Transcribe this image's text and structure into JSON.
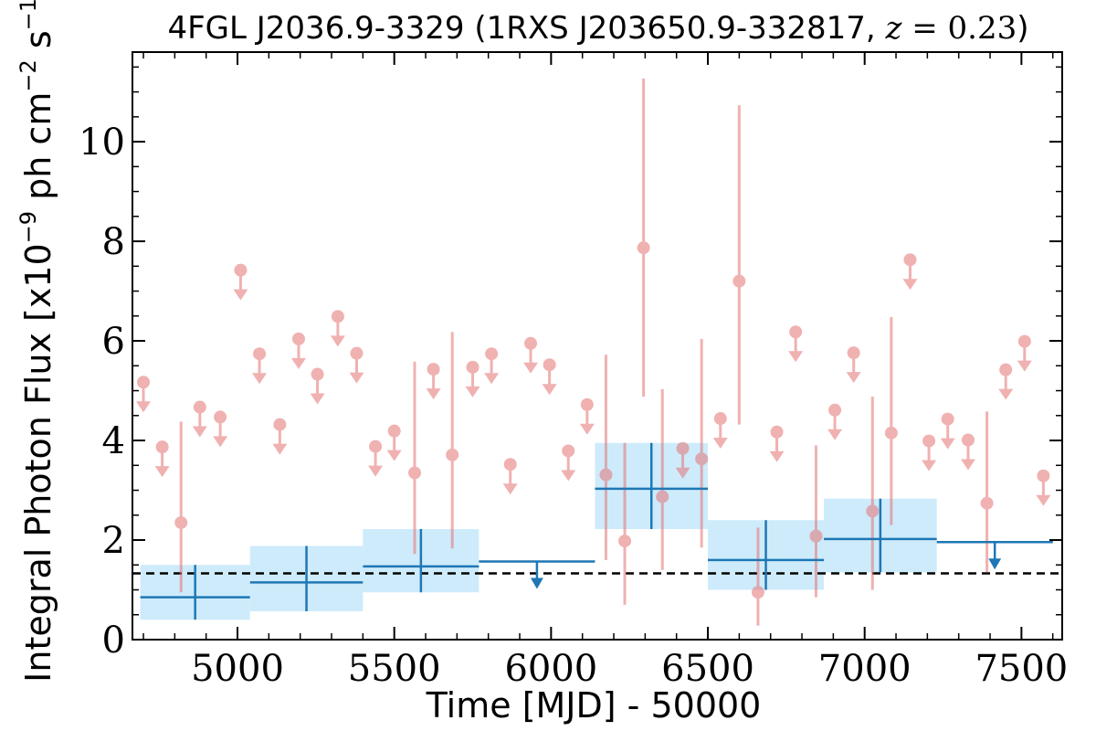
{
  "chart_data": {
    "type": "scatter",
    "title": "4FGL J2036.9-3329 (1RXS J203650.9-332817, z = 0.23)",
    "title_parts": {
      "prefix": "4FGL J2036.9-3329 (1RXS J203650.9-332817, ",
      "z_var": "z",
      "z_eq": " = 0.23",
      "suffix": ")"
    },
    "xlabel": "Time [MJD] - 50000",
    "ylabel": "Integral Photon Flux [x10⁻⁹ ph cm⁻² s⁻¹]",
    "ylabel_parts": {
      "a": "Integral Photon Flux [x10",
      "sup1": "−9",
      "b": " ph cm",
      "sup2": "−2",
      "c": " s",
      "sup3": "−1",
      "d": "]"
    },
    "xlim": [
      4665,
      7630
    ],
    "ylim": [
      0,
      11.8
    ],
    "x_ticks": [
      5000,
      5500,
      6000,
      6500,
      7000,
      7500
    ],
    "x_tick_labels": [
      "5000",
      "5500",
      "6000",
      "6500",
      "7000",
      "7500"
    ],
    "y_ticks": [
      0,
      2,
      4,
      6,
      8,
      10
    ],
    "y_tick_labels": [
      "0",
      "2",
      "4",
      "6",
      "8",
      "10"
    ],
    "grid": false,
    "reference_line": {
      "y": 1.33,
      "style": "dashed",
      "color": "#000000"
    },
    "colors": {
      "short_bins": "#e57373",
      "long_bins": "#1f77b4",
      "long_band": "#cdebfb"
    },
    "long_bins": [
      {
        "x0": 4690,
        "x1": 5040,
        "y": 0.85,
        "ylo": 0.4,
        "yhi": 1.5,
        "upper_limit": false
      },
      {
        "x0": 5040,
        "x1": 5400,
        "y": 1.15,
        "ylo": 0.57,
        "yhi": 1.88,
        "upper_limit": false
      },
      {
        "x0": 5400,
        "x1": 5770,
        "y": 1.47,
        "ylo": 0.95,
        "yhi": 2.22,
        "upper_limit": false
      },
      {
        "x0": 5770,
        "x1": 6140,
        "y": 1.57,
        "upper_limit": true
      },
      {
        "x0": 6140,
        "x1": 6500,
        "y": 3.03,
        "ylo": 2.22,
        "yhi": 3.95,
        "upper_limit": false
      },
      {
        "x0": 6500,
        "x1": 6870,
        "y": 1.6,
        "ylo": 1.0,
        "yhi": 2.4,
        "upper_limit": false
      },
      {
        "x0": 6870,
        "x1": 7230,
        "y": 2.02,
        "ylo": 1.35,
        "yhi": 2.83,
        "upper_limit": false
      },
      {
        "x0": 7230,
        "x1": 7600,
        "y": 1.96,
        "upper_limit": true
      }
    ],
    "short_bins": [
      {
        "x": 4700,
        "y": 5.17,
        "upper_limit": true
      },
      {
        "x": 4760,
        "y": 3.87,
        "upper_limit": true
      },
      {
        "x": 4820,
        "y": 2.35,
        "ylo": 0.95,
        "yhi": 4.38,
        "upper_limit": false
      },
      {
        "x": 4880,
        "y": 4.67,
        "upper_limit": true
      },
      {
        "x": 4945,
        "y": 4.47,
        "upper_limit": true
      },
      {
        "x": 5010,
        "y": 7.42,
        "upper_limit": true
      },
      {
        "x": 5070,
        "y": 5.74,
        "upper_limit": true
      },
      {
        "x": 5135,
        "y": 4.32,
        "upper_limit": true
      },
      {
        "x": 5195,
        "y": 6.04,
        "upper_limit": true
      },
      {
        "x": 5255,
        "y": 5.33,
        "upper_limit": true
      },
      {
        "x": 5320,
        "y": 6.49,
        "upper_limit": true
      },
      {
        "x": 5380,
        "y": 5.75,
        "upper_limit": true
      },
      {
        "x": 5440,
        "y": 3.88,
        "upper_limit": true
      },
      {
        "x": 5500,
        "y": 4.19,
        "upper_limit": true
      },
      {
        "x": 5565,
        "y": 3.35,
        "ylo": 1.72,
        "yhi": 5.58,
        "upper_limit": false
      },
      {
        "x": 5625,
        "y": 5.43,
        "upper_limit": true
      },
      {
        "x": 5685,
        "y": 3.71,
        "ylo": 1.83,
        "yhi": 6.18,
        "upper_limit": false
      },
      {
        "x": 5750,
        "y": 5.47,
        "upper_limit": true
      },
      {
        "x": 5810,
        "y": 5.74,
        "upper_limit": true
      },
      {
        "x": 5870,
        "y": 3.52,
        "upper_limit": true
      },
      {
        "x": 5935,
        "y": 5.95,
        "upper_limit": true
      },
      {
        "x": 5995,
        "y": 5.52,
        "upper_limit": true
      },
      {
        "x": 6055,
        "y": 3.79,
        "upper_limit": true
      },
      {
        "x": 6115,
        "y": 4.72,
        "upper_limit": true
      },
      {
        "x": 6175,
        "y": 3.31,
        "ylo": 1.6,
        "yhi": 5.72,
        "upper_limit": false
      },
      {
        "x": 6235,
        "y": 1.98,
        "ylo": 0.7,
        "yhi": 3.95,
        "upper_limit": false
      },
      {
        "x": 6295,
        "y": 7.87,
        "ylo": 4.88,
        "yhi": 11.27,
        "upper_limit": false
      },
      {
        "x": 6355,
        "y": 2.87,
        "ylo": 1.4,
        "yhi": 5.03,
        "upper_limit": false
      },
      {
        "x": 6420,
        "y": 3.84,
        "upper_limit": true
      },
      {
        "x": 6480,
        "y": 3.63,
        "ylo": 1.85,
        "yhi": 6.04,
        "upper_limit": false
      },
      {
        "x": 6540,
        "y": 4.44,
        "upper_limit": true
      },
      {
        "x": 6600,
        "y": 7.2,
        "ylo": 4.32,
        "yhi": 10.73,
        "upper_limit": false
      },
      {
        "x": 6660,
        "y": 0.95,
        "ylo": 0.28,
        "yhi": 2.25,
        "upper_limit": false
      },
      {
        "x": 6720,
        "y": 4.17,
        "upper_limit": true
      },
      {
        "x": 6780,
        "y": 6.18,
        "upper_limit": true
      },
      {
        "x": 6845,
        "y": 2.08,
        "ylo": 0.85,
        "yhi": 3.9,
        "upper_limit": false
      },
      {
        "x": 6905,
        "y": 4.61,
        "upper_limit": true
      },
      {
        "x": 6965,
        "y": 5.76,
        "upper_limit": true
      },
      {
        "x": 7025,
        "y": 2.58,
        "ylo": 1.0,
        "yhi": 4.88,
        "upper_limit": false
      },
      {
        "x": 7085,
        "y": 4.15,
        "ylo": 2.3,
        "yhi": 6.48,
        "upper_limit": false
      },
      {
        "x": 7145,
        "y": 7.63,
        "upper_limit": true
      },
      {
        "x": 7205,
        "y": 3.99,
        "upper_limit": true
      },
      {
        "x": 7265,
        "y": 4.43,
        "upper_limit": true
      },
      {
        "x": 7330,
        "y": 4.01,
        "upper_limit": true
      },
      {
        "x": 7390,
        "y": 2.74,
        "ylo": 1.35,
        "yhi": 4.58,
        "upper_limit": false
      },
      {
        "x": 7450,
        "y": 5.42,
        "upper_limit": true
      },
      {
        "x": 7510,
        "y": 5.99,
        "upper_limit": true
      },
      {
        "x": 7570,
        "y": 3.29,
        "upper_limit": true
      }
    ]
  }
}
